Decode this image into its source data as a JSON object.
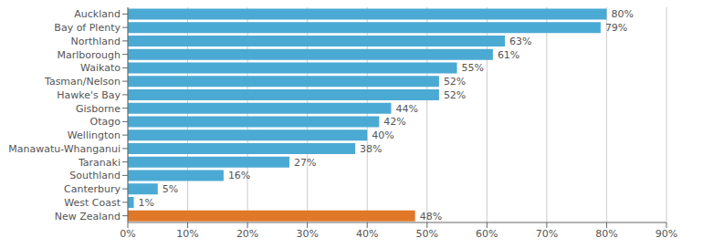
{
  "chart_data": {
    "type": "bar",
    "orientation": "horizontal",
    "categories": [
      "New Zealand",
      "West Coast",
      "Canterbury",
      "Southland",
      "Taranaki",
      "Manawatu-Whanganui",
      "Wellington",
      "Otago",
      "Gisborne",
      "Hawke's Bay",
      "Tasman/Nelson",
      "Waikato",
      "Marlborough",
      "Northland",
      "Bay of Plenty",
      "Auckland"
    ],
    "values": [
      48,
      1,
      5,
      16,
      27,
      38,
      40,
      42,
      44,
      52,
      52,
      55,
      61,
      63,
      79,
      80
    ],
    "value_labels": [
      "48%",
      "1%",
      "5%",
      "16%",
      "27%",
      "38%",
      "40%",
      "42%",
      "44%",
      "52%",
      "52%",
      "55%",
      "61%",
      "63%",
      "79%",
      "80%"
    ],
    "data_labels": true,
    "colors": [
      "#E07828",
      "#4BAAD3",
      "#4BAAD3",
      "#4BAAD3",
      "#4BAAD3",
      "#4BAAD3",
      "#4BAAD3",
      "#4BAAD3",
      "#4BAAD3",
      "#4BAAD3",
      "#4BAAD3",
      "#4BAAD3",
      "#4BAAD3",
      "#4BAAD3",
      "#4BAAD3",
      "#4BAAD3"
    ],
    "xlim": [
      0,
      90
    ],
    "xticks": [
      {
        "value": 0,
        "label": "0%"
      },
      {
        "value": 10,
        "label": "10%"
      },
      {
        "value": 20,
        "label": "20%"
      },
      {
        "value": 30,
        "label": "30%"
      },
      {
        "value": 40,
        "label": "40%"
      },
      {
        "value": 50,
        "label": "50%"
      },
      {
        "value": 60,
        "label": "60%"
      },
      {
        "value": 70,
        "label": "70%"
      },
      {
        "value": 80,
        "label": "80%"
      },
      {
        "value": 90,
        "label": "90%"
      }
    ],
    "grid": true
  }
}
